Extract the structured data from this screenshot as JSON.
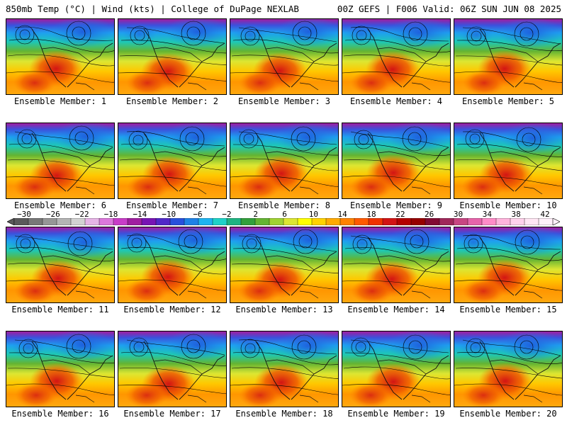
{
  "header": {
    "left": "850mb Temp (°C) | Wind (kts) | College of DuPage NEXLAB",
    "right": "00Z GEFS | F006 Valid: 06Z SUN JUN 08 2025"
  },
  "members": [
    {
      "label": "Ensemble Member: 1"
    },
    {
      "label": "Ensemble Member: 2"
    },
    {
      "label": "Ensemble Member: 3"
    },
    {
      "label": "Ensemble Member: 4"
    },
    {
      "label": "Ensemble Member: 5"
    },
    {
      "label": "Ensemble Member: 6"
    },
    {
      "label": "Ensemble Member: 7"
    },
    {
      "label": "Ensemble Member: 8"
    },
    {
      "label": "Ensemble Member: 9"
    },
    {
      "label": "Ensemble Member: 10"
    },
    {
      "label": "Ensemble Member: 11"
    },
    {
      "label": "Ensemble Member: 12"
    },
    {
      "label": "Ensemble Member: 13"
    },
    {
      "label": "Ensemble Member: 14"
    },
    {
      "label": "Ensemble Member: 15"
    },
    {
      "label": "Ensemble Member: 16"
    },
    {
      "label": "Ensemble Member: 17"
    },
    {
      "label": "Ensemble Member: 18"
    },
    {
      "label": "Ensemble Member: 19"
    },
    {
      "label": "Ensemble Member: 20"
    }
  ],
  "colorbar": {
    "labels": [
      "−30",
      "−26",
      "−22",
      "−18",
      "−14",
      "−10",
      "−6",
      "−2",
      "2",
      "6",
      "10",
      "14",
      "18",
      "22",
      "26",
      "30",
      "34",
      "38",
      "42"
    ],
    "colors": [
      "#5a5a5a",
      "#787878",
      "#969696",
      "#b4b4b4",
      "#d2d2d2",
      "#e6b4e6",
      "#dc78dc",
      "#c83cc8",
      "#a01ea0",
      "#7814b4",
      "#5028c8",
      "#2850dc",
      "#1e82e6",
      "#1eb4f0",
      "#1ed2c8",
      "#1eb482",
      "#32a03c",
      "#64b432",
      "#a0d232",
      "#dce632",
      "#ffff00",
      "#ffd200",
      "#ffaa00",
      "#ff8200",
      "#ff5a00",
      "#f03200",
      "#d21414",
      "#b40000",
      "#960000",
      "#820a32",
      "#a0285a",
      "#c84682",
      "#e664aa",
      "#ff8cc8",
      "#ffb4dc",
      "#ffd2ec",
      "#ffe6f4",
      "#fff0fa"
    ]
  }
}
